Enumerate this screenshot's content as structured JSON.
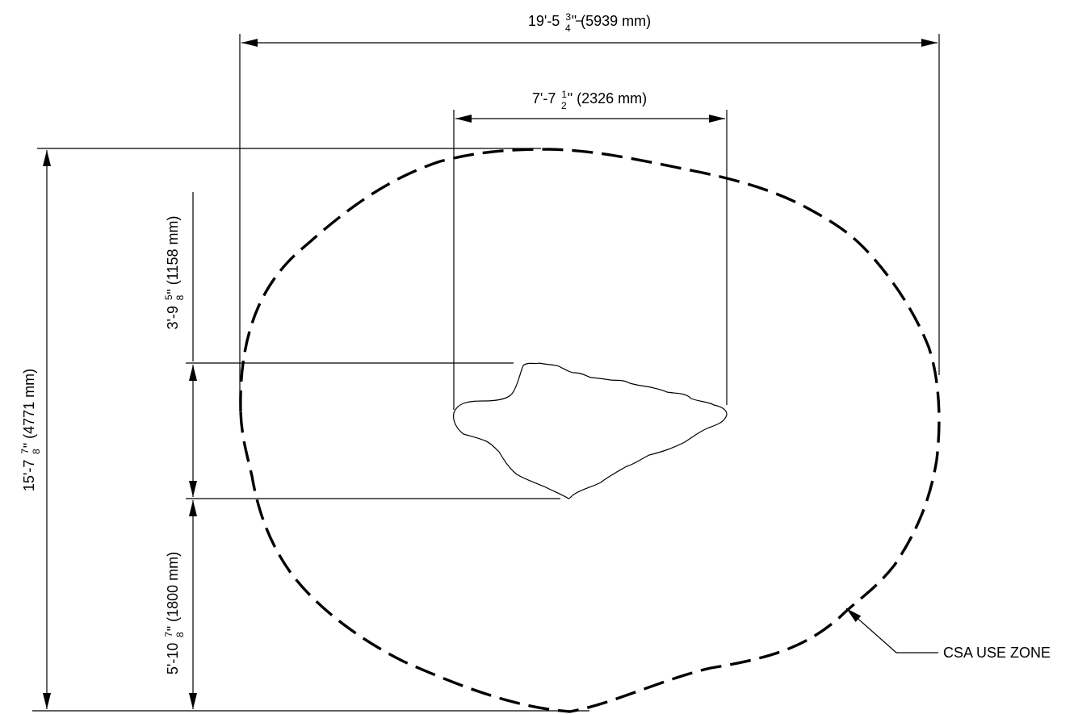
{
  "dimensions": {
    "overall_width": {
      "whole": "19'-5 ",
      "num": "3",
      "den": "4",
      "tail": "\" (5939 mm)"
    },
    "inner_width": {
      "whole": "7'-7 ",
      "num": "1",
      "den": "2",
      "tail": "\" (2326 mm)"
    },
    "overall_height": {
      "whole": "15'-7 ",
      "num": "7",
      "den": "8",
      "tail": "\" (4771 mm)"
    },
    "upper_height": {
      "whole": "3'-9 ",
      "num": "5",
      "den": "8",
      "tail": "\" (1158 mm)"
    },
    "lower_height": {
      "whole": "5'-10 ",
      "num": "7",
      "den": "8",
      "tail": "\" (1800 mm)"
    }
  },
  "callout": {
    "label": "CSA USE ZONE"
  },
  "colors": {
    "line": "#000000",
    "background": "#ffffff"
  }
}
